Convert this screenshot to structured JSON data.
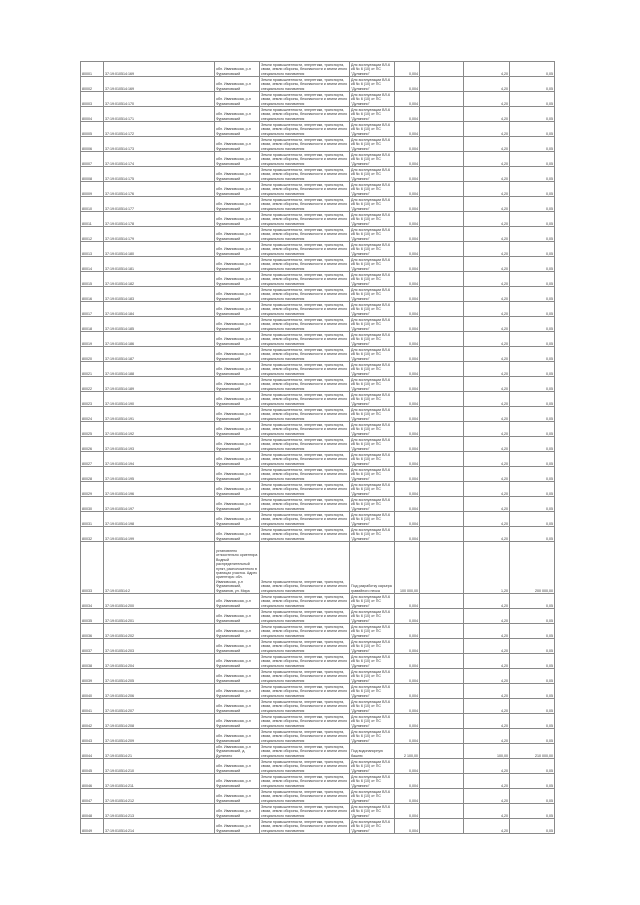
{
  "table": {
    "rows": [
      [
        "80001",
        "37:19:010514:169",
        "обл. Ивановская, р-н Фурмановский",
        "Земли промышленности, энергетики, транспорта, связи, земли обороны, безопасности и земли иного специального назначения",
        "Для эксплуатации ВЛ-6 кВ № 6 (10) от ПС \"Дуляпино\"",
        "0,004",
        "",
        "4,20",
        "0,05"
      ],
      [
        "80002",
        "37:19:010514:169",
        "обл. Ивановская, р-н Фурмановский",
        "Земли промышленности, энергетики, транспорта, связи, земли обороны, безопасности и земли иного специального назначения",
        "Для эксплуатации ВЛ-6 кВ № 6 (10) от ПС \"Дуляпино\"",
        "0,004",
        "",
        "4,20",
        "0,05"
      ],
      [
        "80003",
        "37:19:010514:170",
        "обл. Ивановская, р-н Фурмановский",
        "Земли промышленности, энергетики, транспорта, связи, земли обороны, безопасности и земли иного специального назначения",
        "Для эксплуатации ВЛ-6 кВ № 6 (10) от ПС \"Дуляпино\"",
        "0,004",
        "",
        "4,20",
        "0,05"
      ],
      [
        "80004",
        "37:19:010514:171",
        "обл. Ивановская, р-н Фурмановский",
        "Земли промышленности, энергетики, транспорта, связи, земли обороны, безопасности и земли иного специального назначения",
        "Для эксплуатации ВЛ-6 кВ № 6 (10) от ПС \"Дуляпино\"",
        "0,004",
        "",
        "4,20",
        "0,05"
      ],
      [
        "80005",
        "37:19:010514:172",
        "обл. Ивановская, р-н Фурмановский",
        "Земли промышленности, энергетики, транспорта, связи, земли обороны, безопасности и земли иного специального назначения",
        "Для эксплуатации ВЛ-6 кВ № 6 (10) от ПС \"Дуляпино\"",
        "0,004",
        "",
        "4,20",
        "0,05"
      ],
      [
        "80006",
        "37:19:010514:173",
        "обл. Ивановская, р-н Фурмановский",
        "Земли промышленности, энергетики, транспорта, связи, земли обороны, безопасности и земли иного специального назначения",
        "Для эксплуатации ВЛ-6 кВ № 6 (10) от ПС \"Дуляпино\"",
        "0,004",
        "",
        "4,20",
        "0,05"
      ],
      [
        "80007",
        "37:19:010514:174",
        "обл. Ивановская, р-н Фурмановский",
        "Земли промышленности, энергетики, транспорта, связи, земли обороны, безопасности и земли иного специального назначения",
        "Для эксплуатации ВЛ-6 кВ № 6 (10) от ПС \"Дуляпино\"",
        "0,004",
        "",
        "4,20",
        "0,05"
      ],
      [
        "80008",
        "37:19:010514:175",
        "обл. Ивановская, р-н Фурмановский",
        "Земли промышленности, энергетики, транспорта, связи, земли обороны, безопасности и земли иного специального назначения",
        "Для эксплуатации ВЛ-6 кВ № 6 (10) от ПС \"Дуляпино\"",
        "0,004",
        "",
        "4,20",
        "0,05"
      ],
      [
        "80009",
        "37:19:010514:176",
        "обл. Ивановская, р-н Фурмановский",
        "Земли промышленности, энергетики, транспорта, связи, земли обороны, безопасности и земли иного специального назначения",
        "Для эксплуатации ВЛ-6 кВ № 6 (10) от ПС \"Дуляпино\"",
        "0,004",
        "",
        "4,20",
        "0,05"
      ],
      [
        "80010",
        "37:19:010514:177",
        "обл. Ивановская, р-н Фурмановский",
        "Земли промышленности, энергетики, транспорта, связи, земли обороны, безопасности и земли иного специального назначения",
        "Для эксплуатации ВЛ-6 кВ № 6 (10) от ПС \"Дуляпино\"",
        "0,004",
        "",
        "4,20",
        "0,05"
      ],
      [
        "80011",
        "37:19:010514:178",
        "обл. Ивановская, р-н Фурмановский",
        "Земли промышленности, энергетики, транспорта, связи, земли обороны, безопасности и земли иного специального назначения",
        "Для эксплуатации ВЛ-6 кВ № 6 (10) от ПС \"Дуляпино\"",
        "0,004",
        "",
        "4,20",
        "0,05"
      ],
      [
        "80012",
        "37:19:010514:179",
        "обл. Ивановская, р-н Фурмановский",
        "Земли промышленности, энергетики, транспорта, связи, земли обороны, безопасности и земли иного специального назначения",
        "Для эксплуатации ВЛ-6 кВ № 6 (10) от ПС \"Дуляпино\"",
        "0,004",
        "",
        "4,20",
        "0,05"
      ],
      [
        "80013",
        "37:19:010514:180",
        "обл. Ивановская, р-н Фурмановский",
        "Земли промышленности, энергетики, транспорта, связи, земли обороны, безопасности и земли иного специального назначения",
        "Для эксплуатации ВЛ-6 кВ № 6 (10) от ПС \"Дуляпино\"",
        "0,004",
        "",
        "4,20",
        "0,05"
      ],
      [
        "80014",
        "37:19:010514:181",
        "обл. Ивановская, р-н Фурмановский",
        "Земли промышленности, энергетики, транспорта, связи, земли обороны, безопасности и земли иного специального назначения",
        "Для эксплуатации ВЛ-6 кВ № 6 (10) от ПС \"Дуляпино\"",
        "0,004",
        "",
        "4,20",
        "0,05"
      ],
      [
        "80015",
        "37:19:010514:182",
        "обл. Ивановская, р-н Фурмановский",
        "Земли промышленности, энергетики, транспорта, связи, земли обороны, безопасности и земли иного специального назначения",
        "Для эксплуатации ВЛ-6 кВ № 6 (10) от ПС \"Дуляпино\"",
        "0,004",
        "",
        "4,20",
        "0,05"
      ],
      [
        "80016",
        "37:19:010514:183",
        "обл. Ивановская, р-н Фурмановский",
        "Земли промышленности, энергетики, транспорта, связи, земли обороны, безопасности и земли иного специального назначения",
        "Для эксплуатации ВЛ-6 кВ № 6 (10) от ПС \"Дуляпино\"",
        "0,004",
        "",
        "4,20",
        "0,05"
      ],
      [
        "80017",
        "37:19:010514:184",
        "обл. Ивановская, р-н Фурмановский",
        "Земли промышленности, энергетики, транспорта, связи, земли обороны, безопасности и земли иного специального назначения",
        "Для эксплуатации ВЛ-6 кВ № 6 (10) от ПС \"Дуляпино\"",
        "0,004",
        "",
        "4,20",
        "0,05"
      ],
      [
        "80018",
        "37:19:010514:185",
        "обл. Ивановская, р-н Фурмановский",
        "Земли промышленности, энергетики, транспорта, связи, земли обороны, безопасности и земли иного специального назначения",
        "Для эксплуатации ВЛ-6 кВ № 6 (10) от ПС \"Дуляпино\"",
        "0,004",
        "",
        "4,20",
        "0,05"
      ],
      [
        "80019",
        "37:19:010514:186",
        "обл. Ивановская, р-н Фурмановский",
        "Земли промышленности, энергетики, транспорта, связи, земли обороны, безопасности и земли иного специального назначения",
        "Для эксплуатации ВЛ-6 кВ № 6 (10) от ПС \"Дуляпино\"",
        "0,004",
        "",
        "4,20",
        "0,05"
      ],
      [
        "80020",
        "37:19:010514:187",
        "обл. Ивановская, р-н Фурмановский",
        "Земли промышленности, энергетики, транспорта, связи, земли обороны, безопасности и земли иного специального назначения",
        "Для эксплуатации ВЛ-6 кВ № 6 (10) от ПС \"Дуляпино\"",
        "0,004",
        "",
        "4,20",
        "0,05"
      ],
      [
        "80021",
        "37:19:010514:188",
        "обл. Ивановская, р-н Фурмановский",
        "Земли промышленности, энергетики, транспорта, связи, земли обороны, безопасности и земли иного специального назначения",
        "Для эксплуатации ВЛ-6 кВ № 6 (10) от ПС \"Дуляпино\"",
        "0,004",
        "",
        "4,20",
        "0,05"
      ],
      [
        "80022",
        "37:19:010514:189",
        "обл. Ивановская, р-н Фурмановский",
        "Земли промышленности, энергетики, транспорта, связи, земли обороны, безопасности и земли иного специального назначения",
        "Для эксплуатации ВЛ-6 кВ № 6 (10) от ПС \"Дуляпино\"",
        "0,004",
        "",
        "4,20",
        "0,05"
      ],
      [
        "80023",
        "37:19:010514:190",
        "обл. Ивановская, р-н Фурмановский",
        "Земли промышленности, энергетики, транспорта, связи, земли обороны, безопасности и земли иного специального назначения",
        "Для эксплуатации ВЛ-6 кВ № 6 (10) от ПС \"Дуляпино\"",
        "0,004",
        "",
        "4,20",
        "0,05"
      ],
      [
        "80024",
        "37:19:010514:191",
        "обл. Ивановская, р-н Фурмановский",
        "Земли промышленности, энергетики, транспорта, связи, земли обороны, безопасности и земли иного специального назначения",
        "Для эксплуатации ВЛ-6 кВ № 6 (10) от ПС \"Дуляпино\"",
        "0,004",
        "",
        "4,20",
        "0,05"
      ],
      [
        "80025",
        "37:19:010514:192",
        "обл. Ивановская, р-н Фурмановский",
        "Земли промышленности, энергетики, транспорта, связи, земли обороны, безопасности и земли иного специального назначения",
        "Для эксплуатации ВЛ-6 кВ № 6 (10) от ПС \"Дуляпино\"",
        "0,004",
        "",
        "4,20",
        "0,05"
      ],
      [
        "80026",
        "37:19:010514:193",
        "обл. Ивановская, р-н Фурмановский",
        "Земли промышленности, энергетики, транспорта, связи, земли обороны, безопасности и земли иного специального назначения",
        "Для эксплуатации ВЛ-6 кВ № 6 (10) от ПС \"Дуляпино\"",
        "0,004",
        "",
        "4,20",
        "0,05"
      ],
      [
        "80027",
        "37:19:010514:194",
        "обл. Ивановская, р-н Фурмановский",
        "Земли промышленности, энергетики, транспорта, связи, земли обороны, безопасности и земли иного специального назначения",
        "Для эксплуатации ВЛ-6 кВ № 6 (10) от ПС \"Дуляпино\"",
        "0,004",
        "",
        "4,20",
        "0,05"
      ],
      [
        "80028",
        "37:19:010514:195",
        "обл. Ивановская, р-н Фурмановский",
        "Земли промышленности, энергетики, транспорта, связи, земли обороны, безопасности и земли иного специального назначения",
        "Для эксплуатации ВЛ-6 кВ № 6 (10) от ПС \"Дуляпино\"",
        "0,004",
        "",
        "4,20",
        "0,05"
      ],
      [
        "80029",
        "37:19:010514:196",
        "обл. Ивановская, р-н Фурмановский",
        "Земли промышленности, энергетики, транспорта, связи, земли обороны, безопасности и земли иного специального назначения",
        "Для эксплуатации ВЛ-6 кВ № 6 (10) от ПС \"Дуляпино\"",
        "0,004",
        "",
        "4,20",
        "0,05"
      ],
      [
        "80030",
        "37:19:010514:197",
        "обл. Ивановская, р-н Фурмановский",
        "Земли промышленности, энергетики, транспорта, связи, земли обороны, безопасности и земли иного специального назначения",
        "Для эксплуатации ВЛ-6 кВ № 6 (10) от ПС \"Дуляпино\"",
        "0,004",
        "",
        "4,20",
        "0,05"
      ],
      [
        "80031",
        "37:19:010514:198",
        "обл. Ивановская, р-н Фурмановский",
        "Земли промышленности, энергетики, транспорта, связи, земли обороны, безопасности и земли иного специального назначения",
        "Для эксплуатации ВЛ-6 кВ № 6 (10) от ПС \"Дуляпино\"",
        "0,004",
        "",
        "4,20",
        "0,05"
      ],
      [
        "80032",
        "37:19:010514:199",
        "обл. Ивановская, р-н Фурмановский",
        "Земли промышленности, энергетики, транспорта, связи, земли обороны, безопасности и земли иного специального назначения",
        "Для эксплуатации ВЛ-6 кВ № 6 (10) от ПС \"Дуляпино\"",
        "0,004",
        "",
        "4,20",
        "0,05"
      ],
      [
        "80033",
        "37:19:010514:2",
        "установлено относительно ориентира Водный распределительный пункт, расположенного в границах участка. Адрес ориентира: обл. Ивановская, р-н Фурмановский, Фурманов, ул. Мира",
        "Земли промышленности, энергетики, транспорта, связи, земли обороны, безопасности и земли иного специального назначения",
        "Под разработку карьера гравийного песка",
        "100 000,00",
        "",
        "1,20",
        "200 000,00"
      ],
      [
        "80034",
        "37:19:010514:200",
        "обл. Ивановская, р-н Фурмановский",
        "Земли промышленности, энергетики, транспорта, связи, земли обороны, безопасности и земли иного специального назначения",
        "Для эксплуатации ВЛ-6 кВ № 6 (10) от ПС \"Дуляпино\"",
        "0,004",
        "",
        "4,20",
        "0,05"
      ],
      [
        "80035",
        "37:19:010514:201",
        "обл. Ивановская, р-н Фурмановский",
        "Земли промышленности, энергетики, транспорта, связи, земли обороны, безопасности и земли иного специального назначения",
        "Для эксплуатации ВЛ-6 кВ № 6 (10) от ПС \"Дуляпино\"",
        "0,004",
        "",
        "4,20",
        "0,05"
      ],
      [
        "80036",
        "37:19:010514:202",
        "обл. Ивановская, р-н Фурмановский",
        "Земли промышленности, энергетики, транспорта, связи, земли обороны, безопасности и земли иного специального назначения",
        "Для эксплуатации ВЛ-6 кВ № 6 (10) от ПС \"Дуляпино\"",
        "0,004",
        "",
        "4,20",
        "0,05"
      ],
      [
        "80037",
        "37:19:010514:203",
        "обл. Ивановская, р-н Фурмановский",
        "Земли промышленности, энергетики, транспорта, связи, земли обороны, безопасности и земли иного специального назначения",
        "Для эксплуатации ВЛ-6 кВ № 6 (10) от ПС \"Дуляпино\"",
        "0,004",
        "",
        "4,20",
        "0,05"
      ],
      [
        "80038",
        "37:19:010514:204",
        "обл. Ивановская, р-н Фурмановский",
        "Земли промышленности, энергетики, транспорта, связи, земли обороны, безопасности и земли иного специального назначения",
        "Для эксплуатации ВЛ-6 кВ № 6 (10) от ПС \"Дуляпино\"",
        "0,004",
        "",
        "4,20",
        "0,05"
      ],
      [
        "80039",
        "37:19:010514:205",
        "обл. Ивановская, р-н Фурмановский",
        "Земли промышленности, энергетики, транспорта, связи, земли обороны, безопасности и земли иного специального назначения",
        "Для эксплуатации ВЛ-6 кВ № 6 (10) от ПС \"Дуляпино\"",
        "0,004",
        "",
        "4,20",
        "0,05"
      ],
      [
        "80040",
        "37:19:010514:206",
        "обл. Ивановская, р-н Фурмановский",
        "Земли промышленности, энергетики, транспорта, связи, земли обороны, безопасности и земли иного специального назначения",
        "Для эксплуатации ВЛ-6 кВ № 6 (10) от ПС \"Дуляпино\"",
        "0,004",
        "",
        "4,20",
        "0,05"
      ],
      [
        "80041",
        "37:19:010514:207",
        "обл. Ивановская, р-н Фурмановский",
        "Земли промышленности, энергетики, транспорта, связи, земли обороны, безопасности и земли иного специального назначения",
        "Для эксплуатации ВЛ-6 кВ № 6 (10) от ПС \"Дуляпино\"",
        "0,004",
        "",
        "4,20",
        "0,05"
      ],
      [
        "80042",
        "37:19:010514:208",
        "обл. Ивановская, р-н Фурмановский",
        "Земли промышленности, энергетики, транспорта, связи, земли обороны, безопасности и земли иного специального назначения",
        "Для эксплуатации ВЛ-6 кВ № 6 (10) от ПС \"Дуляпино\"",
        "0,004",
        "",
        "4,20",
        "0,05"
      ],
      [
        "80043",
        "37:19:010514:209",
        "обл. Ивановская, р-н Фурмановский",
        "Земли промышленности, энергетики, транспорта, связи, земли обороны, безопасности и земли иного специального назначения",
        "Для эксплуатации ВЛ-6 кВ № 6 (10) от ПС \"Дуляпино\"",
        "0,004",
        "",
        "4,20",
        "0,05"
      ],
      [
        "80044",
        "37:19:010514:21",
        "обл. Ивановская, р-н Фурмановский, д. Дуляпино",
        "Земли промышленности, энергетики, транспорта, связи, земли обороны, безопасности и земли иного специального назначения",
        "Под водонапорную башню",
        "2 100,00",
        "",
        "100,00",
        "210 000,00"
      ],
      [
        "80045",
        "37:19:010514:210",
        "обл. Ивановская, р-н Фурмановский",
        "Земли промышленности, энергетики, транспорта, связи, земли обороны, безопасности и земли иного специального назначения",
        "Для эксплуатации ВЛ-6 кВ № 6 (10) от ПС \"Дуляпино\"",
        "0,004",
        "",
        "4,20",
        "0,05"
      ],
      [
        "80046",
        "37:19:010514:211",
        "обл. Ивановская, р-н Фурмановский",
        "Земли промышленности, энергетики, транспорта, связи, земли обороны, безопасности и земли иного специального назначения",
        "Для эксплуатации ВЛ-6 кВ № 6 (10) от ПС \"Дуляпино\"",
        "0,004",
        "",
        "4,20",
        "0,05"
      ],
      [
        "80047",
        "37:19:010514:212",
        "обл. Ивановская, р-н Фурмановский",
        "Земли промышленности, энергетики, транспорта, связи, земли обороны, безопасности и земли иного специального назначения",
        "Для эксплуатации ВЛ-6 кВ № 6 (10) от ПС \"Дуляпино\"",
        "0,004",
        "",
        "4,20",
        "0,05"
      ],
      [
        "80048",
        "37:19:010514:213",
        "обл. Ивановская, р-н Фурмановский",
        "Земли промышленности, энергетики, транспорта, связи, земли обороны, безопасности и земли иного специального назначения",
        "Для эксплуатации ВЛ-6 кВ № 6 (10) от ПС \"Дуляпино\"",
        "0,004",
        "",
        "4,20",
        "0,05"
      ],
      [
        "80049",
        "37:19:010514:214",
        "обл. Ивановская, р-н Фурмановский",
        "Земли промышленности, энергетики, транспорта, связи, земли обороны, безопасности и земли иного специального назначения",
        "Для эксплуатации ВЛ-6 кВ № 6 (10) от ПС \"Дуляпино\"",
        "0,004",
        "",
        "4,20",
        "0,05"
      ]
    ]
  }
}
